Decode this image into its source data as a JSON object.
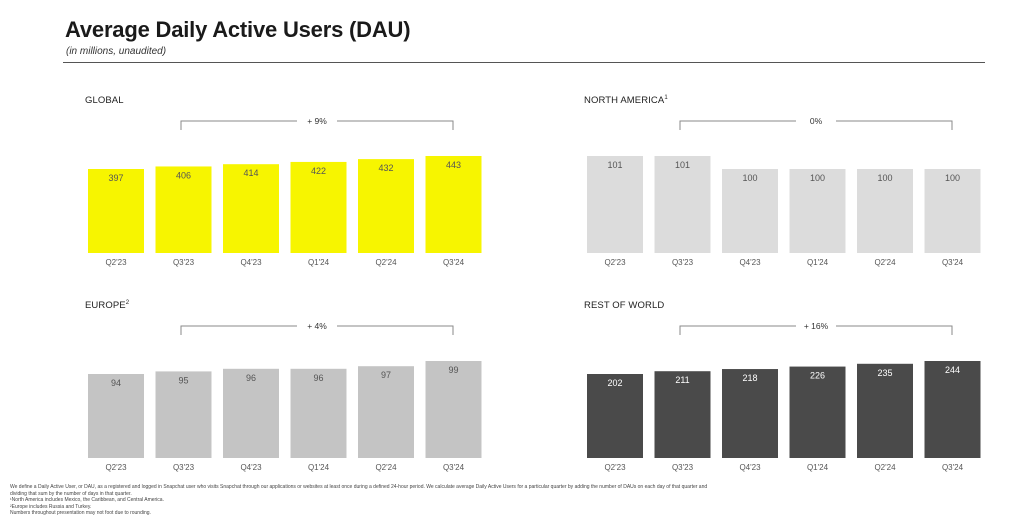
{
  "header": {
    "title": "Average Daily Active Users (DAU)",
    "subtitle": "(in millions, unaudited)"
  },
  "colors": {
    "global": "#f7f500",
    "north_america": "#dcdcdc",
    "europe": "#c4c4c4",
    "rest_of_world": "#4a4a4a",
    "bracket": "#8a8a8a"
  },
  "chart_data": [
    {
      "type": "bar",
      "title": "GLOBAL",
      "title_footnote": "",
      "categories": [
        "Q2'23",
        "Q3'23",
        "Q4'23",
        "Q1'24",
        "Q2'24",
        "Q3'24"
      ],
      "values": [
        397,
        406,
        414,
        422,
        432,
        443
      ],
      "growth_label": "+ 9%",
      "color": "#f7f500",
      "label_color": "#555555",
      "grid": false
    },
    {
      "type": "bar",
      "title": "NORTH AMERICA",
      "title_footnote": "1",
      "categories": [
        "Q2'23",
        "Q3'23",
        "Q4'23",
        "Q1'24",
        "Q2'24",
        "Q3'24"
      ],
      "values": [
        101,
        101,
        100,
        100,
        100,
        100
      ],
      "growth_label": "0%",
      "color": "#dcdcdc",
      "label_color": "#555555",
      "grid": false
    },
    {
      "type": "bar",
      "title": "EUROPE",
      "title_footnote": "2",
      "categories": [
        "Q2'23",
        "Q3'23",
        "Q4'23",
        "Q1'24",
        "Q2'24",
        "Q3'24"
      ],
      "values": [
        94,
        95,
        96,
        96,
        97,
        99
      ],
      "growth_label": "+ 4%",
      "color": "#c4c4c4",
      "label_color": "#555555",
      "grid": false
    },
    {
      "type": "bar",
      "title": "REST OF WORLD",
      "title_footnote": "",
      "categories": [
        "Q2'23",
        "Q3'23",
        "Q4'23",
        "Q1'24",
        "Q2'24",
        "Q3'24"
      ],
      "values": [
        202,
        211,
        218,
        226,
        235,
        244
      ],
      "growth_label": "+ 16%",
      "color": "#4a4a4a",
      "label_color": "#ffffff",
      "grid": false
    }
  ],
  "footnotes": [
    "We define a Daily Active User, or DAU, as a registered and logged in Snapchat user who visits Snapchat through our applications or websites at least once during a defined 24-hour period. We calculate average Daily Active Users for a particular quarter by adding the number of DAUs on each day of that quarter and",
    "dividing that sum by the number of days in that quarter.",
    "¹North America includes Mexico, the Caribbean, and Central America.",
    "²Europe includes Russia and Turkey.",
    "Numbers throughout presentation may not foot due to rounding."
  ]
}
